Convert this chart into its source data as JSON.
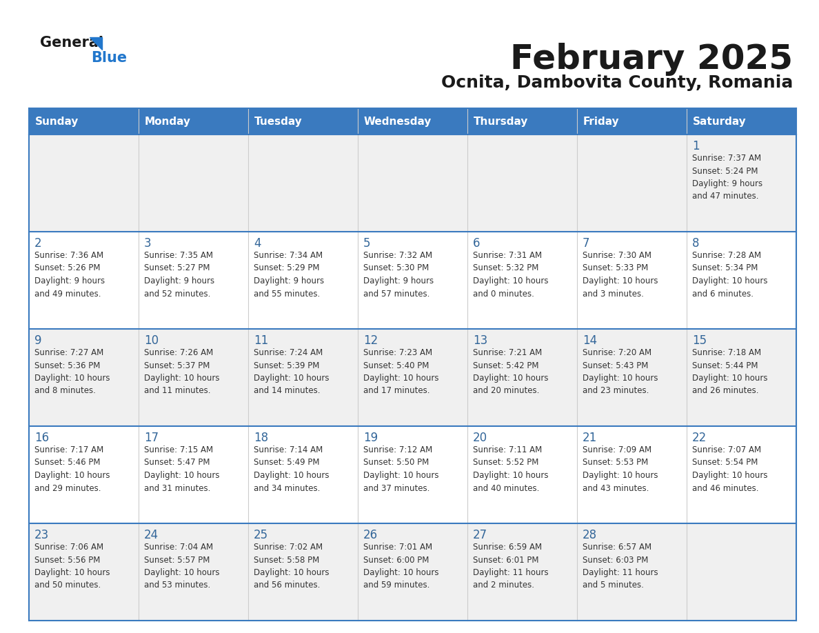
{
  "title": "February 2025",
  "subtitle": "Ocnita, Dambovita County, Romania",
  "header_bg": "#3a7abf",
  "header_text_color": "#ffffff",
  "cell_bg_odd": "#f0f0f0",
  "cell_bg_even": "#ffffff",
  "text_color": "#333333",
  "day_num_color": "#336699",
  "line_color": "#3a7abf",
  "days_of_week": [
    "Sunday",
    "Monday",
    "Tuesday",
    "Wednesday",
    "Thursday",
    "Friday",
    "Saturday"
  ],
  "weeks": [
    [
      {
        "day": "",
        "info": ""
      },
      {
        "day": "",
        "info": ""
      },
      {
        "day": "",
        "info": ""
      },
      {
        "day": "",
        "info": ""
      },
      {
        "day": "",
        "info": ""
      },
      {
        "day": "",
        "info": ""
      },
      {
        "day": "1",
        "info": "Sunrise: 7:37 AM\nSunset: 5:24 PM\nDaylight: 9 hours\nand 47 minutes."
      }
    ],
    [
      {
        "day": "2",
        "info": "Sunrise: 7:36 AM\nSunset: 5:26 PM\nDaylight: 9 hours\nand 49 minutes."
      },
      {
        "day": "3",
        "info": "Sunrise: 7:35 AM\nSunset: 5:27 PM\nDaylight: 9 hours\nand 52 minutes."
      },
      {
        "day": "4",
        "info": "Sunrise: 7:34 AM\nSunset: 5:29 PM\nDaylight: 9 hours\nand 55 minutes."
      },
      {
        "day": "5",
        "info": "Sunrise: 7:32 AM\nSunset: 5:30 PM\nDaylight: 9 hours\nand 57 minutes."
      },
      {
        "day": "6",
        "info": "Sunrise: 7:31 AM\nSunset: 5:32 PM\nDaylight: 10 hours\nand 0 minutes."
      },
      {
        "day": "7",
        "info": "Sunrise: 7:30 AM\nSunset: 5:33 PM\nDaylight: 10 hours\nand 3 minutes."
      },
      {
        "day": "8",
        "info": "Sunrise: 7:28 AM\nSunset: 5:34 PM\nDaylight: 10 hours\nand 6 minutes."
      }
    ],
    [
      {
        "day": "9",
        "info": "Sunrise: 7:27 AM\nSunset: 5:36 PM\nDaylight: 10 hours\nand 8 minutes."
      },
      {
        "day": "10",
        "info": "Sunrise: 7:26 AM\nSunset: 5:37 PM\nDaylight: 10 hours\nand 11 minutes."
      },
      {
        "day": "11",
        "info": "Sunrise: 7:24 AM\nSunset: 5:39 PM\nDaylight: 10 hours\nand 14 minutes."
      },
      {
        "day": "12",
        "info": "Sunrise: 7:23 AM\nSunset: 5:40 PM\nDaylight: 10 hours\nand 17 minutes."
      },
      {
        "day": "13",
        "info": "Sunrise: 7:21 AM\nSunset: 5:42 PM\nDaylight: 10 hours\nand 20 minutes."
      },
      {
        "day": "14",
        "info": "Sunrise: 7:20 AM\nSunset: 5:43 PM\nDaylight: 10 hours\nand 23 minutes."
      },
      {
        "day": "15",
        "info": "Sunrise: 7:18 AM\nSunset: 5:44 PM\nDaylight: 10 hours\nand 26 minutes."
      }
    ],
    [
      {
        "day": "16",
        "info": "Sunrise: 7:17 AM\nSunset: 5:46 PM\nDaylight: 10 hours\nand 29 minutes."
      },
      {
        "day": "17",
        "info": "Sunrise: 7:15 AM\nSunset: 5:47 PM\nDaylight: 10 hours\nand 31 minutes."
      },
      {
        "day": "18",
        "info": "Sunrise: 7:14 AM\nSunset: 5:49 PM\nDaylight: 10 hours\nand 34 minutes."
      },
      {
        "day": "19",
        "info": "Sunrise: 7:12 AM\nSunset: 5:50 PM\nDaylight: 10 hours\nand 37 minutes."
      },
      {
        "day": "20",
        "info": "Sunrise: 7:11 AM\nSunset: 5:52 PM\nDaylight: 10 hours\nand 40 minutes."
      },
      {
        "day": "21",
        "info": "Sunrise: 7:09 AM\nSunset: 5:53 PM\nDaylight: 10 hours\nand 43 minutes."
      },
      {
        "day": "22",
        "info": "Sunrise: 7:07 AM\nSunset: 5:54 PM\nDaylight: 10 hours\nand 46 minutes."
      }
    ],
    [
      {
        "day": "23",
        "info": "Sunrise: 7:06 AM\nSunset: 5:56 PM\nDaylight: 10 hours\nand 50 minutes."
      },
      {
        "day": "24",
        "info": "Sunrise: 7:04 AM\nSunset: 5:57 PM\nDaylight: 10 hours\nand 53 minutes."
      },
      {
        "day": "25",
        "info": "Sunrise: 7:02 AM\nSunset: 5:58 PM\nDaylight: 10 hours\nand 56 minutes."
      },
      {
        "day": "26",
        "info": "Sunrise: 7:01 AM\nSunset: 6:00 PM\nDaylight: 10 hours\nand 59 minutes."
      },
      {
        "day": "27",
        "info": "Sunrise: 6:59 AM\nSunset: 6:01 PM\nDaylight: 11 hours\nand 2 minutes."
      },
      {
        "day": "28",
        "info": "Sunrise: 6:57 AM\nSunset: 6:03 PM\nDaylight: 11 hours\nand 5 minutes."
      },
      {
        "day": "",
        "info": ""
      }
    ]
  ],
  "logo_color_general": "#1a1a1a",
  "logo_color_blue": "#2277cc",
  "logo_triangle_color": "#2277cc",
  "title_fontsize": 36,
  "subtitle_fontsize": 18,
  "header_fontsize": 11,
  "day_num_fontsize": 12,
  "info_fontsize": 8.5
}
